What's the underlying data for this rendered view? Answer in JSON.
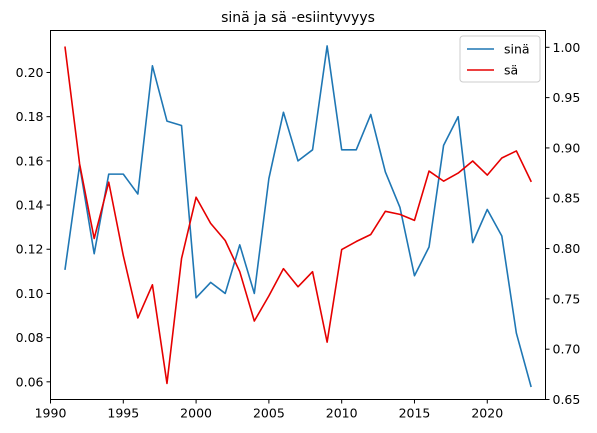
{
  "chart_data": {
    "type": "line",
    "title": "sinä ja sä -esiintyvyys",
    "xlabel": "",
    "ylabel": "",
    "x": [
      1991,
      1992,
      1993,
      1994,
      1995,
      1996,
      1997,
      1998,
      1999,
      2000,
      2001,
      2002,
      2003,
      2004,
      2005,
      2006,
      2007,
      2008,
      2009,
      2010,
      2011,
      2012,
      2013,
      2014,
      2015,
      2016,
      2017,
      2018,
      2019,
      2020,
      2021,
      2022,
      2023
    ],
    "xlim": [
      1990,
      2024
    ],
    "xticks": [
      1990,
      1995,
      2000,
      2005,
      2010,
      2015,
      2020
    ],
    "series": [
      {
        "name": "sinä",
        "axis": "left",
        "color": "#1f77b4",
        "values": [
          0.111,
          0.158,
          0.118,
          0.154,
          0.154,
          0.145,
          0.203,
          0.178,
          0.176,
          0.098,
          0.105,
          0.1,
          0.122,
          0.1,
          0.152,
          0.182,
          0.16,
          0.165,
          0.212,
          0.165,
          0.165,
          0.181,
          0.155,
          0.139,
          0.108,
          0.121,
          0.167,
          0.18,
          0.123,
          0.138,
          0.126,
          0.082,
          0.058
        ]
      },
      {
        "name": "sä",
        "axis": "right",
        "color": "#e60000",
        "values": [
          1.0,
          0.884,
          0.81,
          0.866,
          0.793,
          0.731,
          0.764,
          0.666,
          0.79,
          0.851,
          0.825,
          0.808,
          0.777,
          0.728,
          0.753,
          0.78,
          0.762,
          0.777,
          0.707,
          0.799,
          0.807,
          0.814,
          0.837,
          0.834,
          0.828,
          0.877,
          0.867,
          0.875,
          0.887,
          0.873,
          0.89,
          0.897,
          0.867
        ]
      }
    ],
    "y_left": {
      "lim": [
        0.052,
        0.219
      ],
      "ticks": [
        0.06,
        0.08,
        0.1,
        0.12,
        0.14,
        0.16,
        0.18,
        0.2
      ],
      "tick_labels": [
        "0.06",
        "0.08",
        "0.10",
        "0.12",
        "0.14",
        "0.16",
        "0.18",
        "0.20"
      ]
    },
    "y_right": {
      "lim": [
        0.65,
        1.0167
      ],
      "ticks": [
        0.65,
        0.7,
        0.75,
        0.8,
        0.85,
        0.9,
        0.95,
        1.0
      ],
      "tick_labels": [
        "0.65",
        "0.70",
        "0.75",
        "0.80",
        "0.85",
        "0.90",
        "0.95",
        "1.00"
      ]
    },
    "grid": false,
    "legend": "top-right"
  }
}
